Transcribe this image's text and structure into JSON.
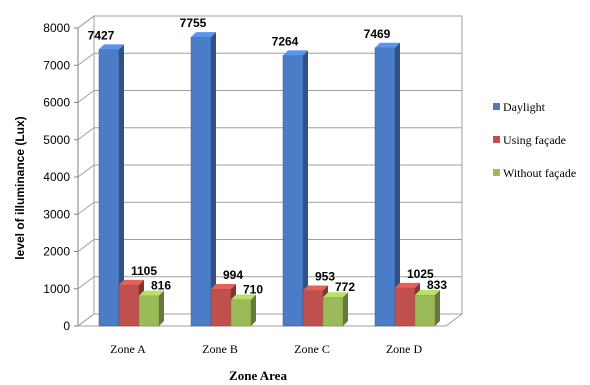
{
  "chart_data": {
    "type": "bar",
    "variant": "3d-clustered-column",
    "categories": [
      "Zone A",
      "Zone B",
      "Zone C",
      "Zone D"
    ],
    "series": [
      {
        "name": "Daylight",
        "values": [
          7427,
          7755,
          7264,
          7469
        ],
        "color": "#4a7cc7"
      },
      {
        "name": "Using façade",
        "values": [
          1105,
          994,
          953,
          1025
        ],
        "color": "#c0504d"
      },
      {
        "name": "Without façade",
        "values": [
          816,
          710,
          772,
          833
        ],
        "color": "#9bbb59"
      }
    ],
    "data_labels": [
      [
        "7427",
        "7755",
        "7264",
        "7469"
      ],
      [
        "1105",
        "994",
        "953",
        "1025"
      ],
      [
        "816",
        "710",
        "772",
        "833"
      ]
    ],
    "title": "",
    "xlabel": "Zone Area",
    "ylabel": "level of illuminance (Lux)",
    "ylim": [
      0,
      8000
    ],
    "yticks": [
      0,
      1000,
      2000,
      3000,
      4000,
      5000,
      6000,
      7000,
      8000
    ],
    "ytick_labels": [
      "0",
      "1000",
      "2000",
      "3000",
      "4000",
      "5000",
      "6000",
      "7000",
      "8000"
    ],
    "grid": true,
    "legend_position": "right"
  }
}
